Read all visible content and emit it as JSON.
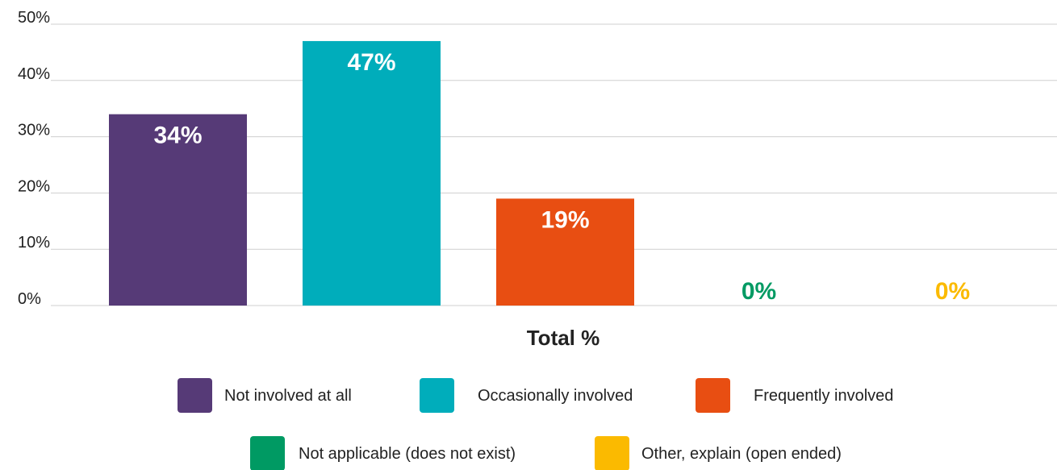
{
  "chart_data": {
    "type": "bar",
    "categories": [
      "Not involved at all",
      "Occasionally involved",
      "Frequently involved",
      "Not applicable (does not exist)",
      "Other, explain (open ended)"
    ],
    "values": [
      34,
      47,
      19,
      0,
      0
    ],
    "data_labels": [
      "34%",
      "47%",
      "19%",
      "0%",
      "0%"
    ],
    "colors": [
      "#563a77",
      "#00adbb",
      "#e84e12",
      "#009a63",
      "#fbba00"
    ],
    "label_colors": [
      "#ffffff",
      "#ffffff",
      "#ffffff",
      "#009a63",
      "#fbba00"
    ],
    "xlabel": "Total %",
    "ylim": [
      0,
      50
    ],
    "yticks": [
      0,
      10,
      20,
      30,
      40,
      50
    ],
    "ytick_labels": [
      "0%",
      "10%",
      "20%",
      "30%",
      "40%",
      "50%"
    ],
    "grid": true,
    "legend": {
      "placement": "bottom",
      "rows": [
        [
          "Not involved at all",
          "Occasionally involved",
          "Frequently involved"
        ],
        [
          "Not applicable (does not exist)",
          "Other, explain (open ended)"
        ]
      ]
    }
  }
}
